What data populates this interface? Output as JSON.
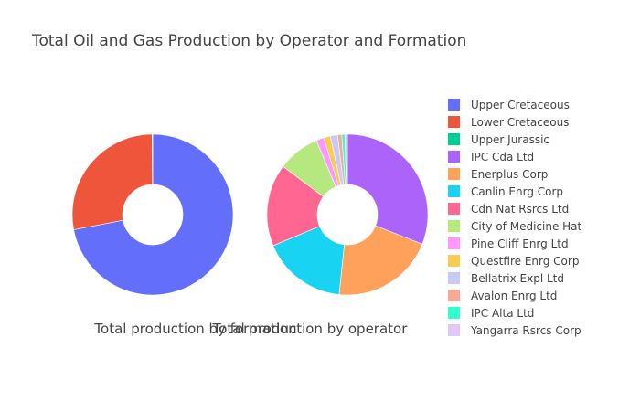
{
  "chart_data": {
    "type": "pie",
    "title": "Total Oil and Gas Production by Operator and Formation",
    "subplots": [
      {
        "name": "Total production by formation",
        "hole": true,
        "labels": [
          "Upper Cretaceous",
          "Lower Cretaceous",
          "Upper Jurassic"
        ],
        "values": [
          72.0,
          27.9,
          0.1
        ],
        "colors": [
          "#636efa",
          "#ef553b",
          "#00cc96"
        ]
      },
      {
        "name": "Total production by operator",
        "hole": true,
        "labels": [
          "IPC Cda Ltd",
          "Enerplus Corp",
          "Canlin Enrg Corp",
          "Cdn Nat Rsrcs Ltd",
          "City of Medicine Hat",
          "Pine Cliff Enrg Ltd",
          "Questfire Enrg Corp",
          "Bellatrix Expl Ltd",
          "Avalon Enrg Ltd",
          "IPC Alta Ltd",
          "Yangarra Rsrcs Corp"
        ],
        "values": [
          30.0,
          20.0,
          16.5,
          16.0,
          8.2,
          1.5,
          1.3,
          1.4,
          0.8,
          0.6,
          0.5
        ],
        "colors": [
          "#ab63fa",
          "#ffa15a",
          "#19d3f3",
          "#ff6692",
          "#b6e880",
          "#ff97ff",
          "#fecb52",
          "#c6cbf5",
          "#f7a996",
          "#33ffcc",
          "#e2c6f9"
        ]
      }
    ],
    "legend": {
      "position": "right",
      "labels": [
        "Upper Cretaceous",
        "Lower Cretaceous",
        "Upper Jurassic",
        "IPC Cda Ltd",
        "Enerplus Corp",
        "Canlin Enrg Corp",
        "Cdn Nat Rsrcs Ltd",
        "City of Medicine Hat",
        "Pine Cliff Enrg Ltd",
        "Questfire Enrg Corp",
        "Bellatrix Expl Ltd",
        "Avalon Enrg Ltd",
        "IPC Alta Ltd",
        "Yangarra Rsrcs Corp"
      ],
      "colors": [
        "#636efa",
        "#ef553b",
        "#00cc96",
        "#ab63fa",
        "#ffa15a",
        "#19d3f3",
        "#ff6692",
        "#b6e880",
        "#ff97ff",
        "#fecb52",
        "#c6cbf5",
        "#f7a996",
        "#33ffcc",
        "#e2c6f9"
      ]
    }
  }
}
